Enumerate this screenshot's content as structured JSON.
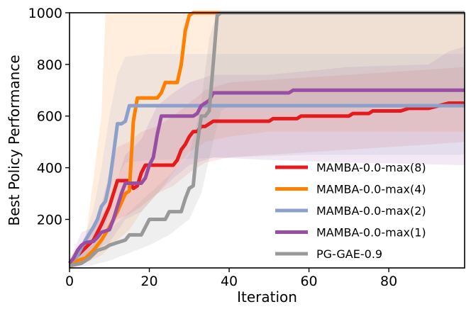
{
  "chart_data": {
    "type": "line",
    "title": "",
    "xlabel": "Iteration",
    "ylabel": "Best Policy Performance",
    "xlim": [
      0,
      99
    ],
    "ylim": [
      12,
      1000
    ],
    "xticks": [
      0,
      20,
      40,
      60,
      80
    ],
    "yticks": [
      200,
      400,
      600,
      800,
      1000
    ],
    "legend_position": "lower-right",
    "series": [
      {
        "name": "MAMBA-0.0-max(8)",
        "color": "#e41a1c",
        "band_opacity": 0.1,
        "points": [
          [
            0,
            30
          ],
          [
            2,
            60
          ],
          [
            4,
            90
          ],
          [
            6,
            120
          ],
          [
            8,
            180
          ],
          [
            10,
            250
          ],
          [
            11,
            300
          ],
          [
            12,
            350
          ],
          [
            14,
            350
          ],
          [
            15,
            350
          ],
          [
            16,
            320
          ],
          [
            17,
            330
          ],
          [
            18,
            380
          ],
          [
            19,
            410
          ],
          [
            23,
            410
          ],
          [
            26,
            410
          ],
          [
            27,
            430
          ],
          [
            28,
            470
          ],
          [
            29,
            490
          ],
          [
            30,
            520
          ],
          [
            31,
            540
          ],
          [
            32,
            540
          ],
          [
            33,
            560
          ],
          [
            34,
            560
          ],
          [
            35,
            570
          ],
          [
            36,
            580
          ],
          [
            48,
            580
          ],
          [
            50,
            580
          ],
          [
            51,
            590
          ],
          [
            52,
            590
          ],
          [
            53,
            590
          ],
          [
            55,
            590
          ],
          [
            57,
            590
          ],
          [
            58,
            600
          ],
          [
            60,
            600
          ],
          [
            62,
            600
          ],
          [
            63,
            600
          ],
          [
            65,
            600
          ],
          [
            67,
            600
          ],
          [
            69,
            600
          ],
          [
            70,
            600
          ],
          [
            71,
            610
          ],
          [
            74,
            610
          ],
          [
            75,
            610
          ],
          [
            76,
            620
          ],
          [
            81,
            620
          ],
          [
            83,
            620
          ],
          [
            85,
            630
          ],
          [
            88,
            630
          ],
          [
            90,
            630
          ],
          [
            95,
            650
          ],
          [
            99,
            650
          ]
        ],
        "band_lo": [
          [
            0,
            20
          ],
          [
            3,
            30
          ],
          [
            6,
            60
          ],
          [
            8,
            100
          ],
          [
            10,
            160
          ],
          [
            12,
            200
          ],
          [
            15,
            220
          ],
          [
            18,
            250
          ],
          [
            22,
            300
          ],
          [
            26,
            330
          ],
          [
            30,
            380
          ],
          [
            34,
            420
          ],
          [
            40,
            440
          ],
          [
            50,
            450
          ],
          [
            60,
            460
          ],
          [
            70,
            470
          ],
          [
            80,
            480
          ],
          [
            90,
            490
          ],
          [
            99,
            500
          ]
        ],
        "band_hi": [
          [
            0,
            40
          ],
          [
            3,
            90
          ],
          [
            6,
            160
          ],
          [
            8,
            260
          ],
          [
            10,
            380
          ],
          [
            12,
            480
          ],
          [
            15,
            500
          ],
          [
            18,
            540
          ],
          [
            22,
            560
          ],
          [
            26,
            600
          ],
          [
            30,
            650
          ],
          [
            34,
            700
          ],
          [
            40,
            730
          ],
          [
            50,
            740
          ],
          [
            60,
            750
          ],
          [
            70,
            760
          ],
          [
            80,
            770
          ],
          [
            90,
            780
          ],
          [
            99,
            790
          ]
        ]
      },
      {
        "name": "MAMBA-0.0-max(4)",
        "color": "#ff7f00",
        "band_opacity": 0.13,
        "points": [
          [
            0,
            30
          ],
          [
            2,
            40
          ],
          [
            4,
            50
          ],
          [
            6,
            80
          ],
          [
            8,
            120
          ],
          [
            10,
            170
          ],
          [
            12,
            230
          ],
          [
            14,
            300
          ],
          [
            15,
            310
          ],
          [
            16,
            580
          ],
          [
            17,
            670
          ],
          [
            22,
            670
          ],
          [
            23,
            690
          ],
          [
            24,
            730
          ],
          [
            27,
            730
          ],
          [
            28,
            800
          ],
          [
            29,
            930
          ],
          [
            30,
            990
          ],
          [
            31,
            1000
          ],
          [
            99,
            1000
          ]
        ],
        "band_lo": [
          [
            0,
            20
          ],
          [
            4,
            30
          ],
          [
            8,
            60
          ],
          [
            12,
            120
          ],
          [
            15,
            160
          ],
          [
            18,
            230
          ],
          [
            22,
            300
          ],
          [
            26,
            380
          ],
          [
            30,
            460
          ],
          [
            34,
            500
          ],
          [
            40,
            520
          ],
          [
            50,
            540
          ],
          [
            99,
            540
          ]
        ],
        "band_hi": [
          [
            0,
            50
          ],
          [
            4,
            120
          ],
          [
            8,
            600
          ],
          [
            9,
            1000
          ],
          [
            99,
            1000
          ]
        ]
      },
      {
        "name": "MAMBA-0.0-max(2)",
        "color": "#8da0cb",
        "band_opacity": 0.14,
        "points": [
          [
            0,
            30
          ],
          [
            2,
            60
          ],
          [
            4,
            120
          ],
          [
            6,
            170
          ],
          [
            7,
            200
          ],
          [
            8,
            250
          ],
          [
            9,
            270
          ],
          [
            10,
            340
          ],
          [
            11,
            450
          ],
          [
            12,
            570
          ],
          [
            13,
            570
          ],
          [
            14,
            580
          ],
          [
            15,
            640
          ],
          [
            99,
            640
          ]
        ],
        "band_lo": [
          [
            0,
            20
          ],
          [
            3,
            40
          ],
          [
            6,
            90
          ],
          [
            8,
            140
          ],
          [
            10,
            220
          ],
          [
            12,
            360
          ],
          [
            14,
            420
          ],
          [
            20,
            430
          ],
          [
            40,
            440
          ],
          [
            60,
            450
          ],
          [
            99,
            450
          ]
        ],
        "band_hi": [
          [
            0,
            40
          ],
          [
            3,
            90
          ],
          [
            6,
            240
          ],
          [
            8,
            400
          ],
          [
            10,
            600
          ],
          [
            12,
            760
          ],
          [
            14,
            830
          ],
          [
            20,
            840
          ],
          [
            40,
            840
          ],
          [
            60,
            840
          ],
          [
            99,
            840
          ]
        ]
      },
      {
        "name": "MAMBA-0.0-max(1)",
        "color": "#984ea3",
        "band_opacity": 0.12,
        "points": [
          [
            0,
            30
          ],
          [
            1,
            50
          ],
          [
            2,
            80
          ],
          [
            3,
            100
          ],
          [
            4,
            110
          ],
          [
            6,
            115
          ],
          [
            7,
            130
          ],
          [
            8,
            150
          ],
          [
            10,
            160
          ],
          [
            11,
            200
          ],
          [
            12,
            250
          ],
          [
            13,
            300
          ],
          [
            14,
            340
          ],
          [
            17,
            340
          ],
          [
            18,
            340
          ],
          [
            19,
            360
          ],
          [
            20,
            410
          ],
          [
            21,
            440
          ],
          [
            22,
            530
          ],
          [
            23,
            600
          ],
          [
            24,
            600
          ],
          [
            25,
            600
          ],
          [
            30,
            600
          ],
          [
            31,
            600
          ],
          [
            32,
            610
          ],
          [
            33,
            640
          ],
          [
            34,
            650
          ],
          [
            35,
            660
          ],
          [
            36,
            690
          ],
          [
            37,
            690
          ],
          [
            55,
            690
          ],
          [
            56,
            700
          ],
          [
            99,
            700
          ]
        ],
        "band_lo": [
          [
            0,
            20
          ],
          [
            3,
            50
          ],
          [
            6,
            80
          ],
          [
            10,
            110
          ],
          [
            14,
            200
          ],
          [
            18,
            230
          ],
          [
            22,
            300
          ],
          [
            26,
            360
          ],
          [
            30,
            410
          ],
          [
            36,
            440
          ],
          [
            50,
            430
          ],
          [
            70,
            420
          ],
          [
            99,
            410
          ]
        ],
        "band_hi": [
          [
            0,
            40
          ],
          [
            3,
            150
          ],
          [
            6,
            170
          ],
          [
            10,
            260
          ],
          [
            14,
            450
          ],
          [
            18,
            510
          ],
          [
            22,
            640
          ],
          [
            26,
            690
          ],
          [
            30,
            730
          ],
          [
            36,
            760
          ],
          [
            50,
            760
          ],
          [
            70,
            790
          ],
          [
            90,
            800
          ],
          [
            95,
            850
          ],
          [
            99,
            870
          ]
        ]
      },
      {
        "name": "PG-GAE-0.9",
        "color": "#999999",
        "band_opacity": 0.16,
        "points": [
          [
            0,
            20
          ],
          [
            3,
            30
          ],
          [
            5,
            50
          ],
          [
            7,
            80
          ],
          [
            9,
            90
          ],
          [
            10,
            100
          ],
          [
            12,
            110
          ],
          [
            14,
            120
          ],
          [
            15,
            140
          ],
          [
            18,
            140
          ],
          [
            19,
            170
          ],
          [
            20,
            200
          ],
          [
            24,
            200
          ],
          [
            25,
            230
          ],
          [
            28,
            230
          ],
          [
            29,
            280
          ],
          [
            30,
            320
          ],
          [
            31,
            330
          ],
          [
            32,
            490
          ],
          [
            33,
            600
          ],
          [
            34,
            600
          ],
          [
            35,
            620
          ],
          [
            36,
            800
          ],
          [
            37,
            990
          ],
          [
            38,
            1000
          ],
          [
            99,
            1000
          ]
        ],
        "band_lo": [
          [
            0,
            10
          ],
          [
            5,
            20
          ],
          [
            10,
            40
          ],
          [
            15,
            70
          ],
          [
            20,
            100
          ],
          [
            25,
            140
          ],
          [
            30,
            200
          ],
          [
            33,
            300
          ],
          [
            36,
            500
          ],
          [
            38,
            620
          ],
          [
            40,
            640
          ],
          [
            99,
            640
          ]
        ],
        "band_hi": [
          [
            0,
            30
          ],
          [
            5,
            90
          ],
          [
            10,
            160
          ],
          [
            15,
            230
          ],
          [
            20,
            300
          ],
          [
            25,
            370
          ],
          [
            30,
            450
          ],
          [
            33,
            650
          ],
          [
            35,
            900
          ],
          [
            37,
            1000
          ],
          [
            99,
            1000
          ]
        ]
      }
    ]
  }
}
